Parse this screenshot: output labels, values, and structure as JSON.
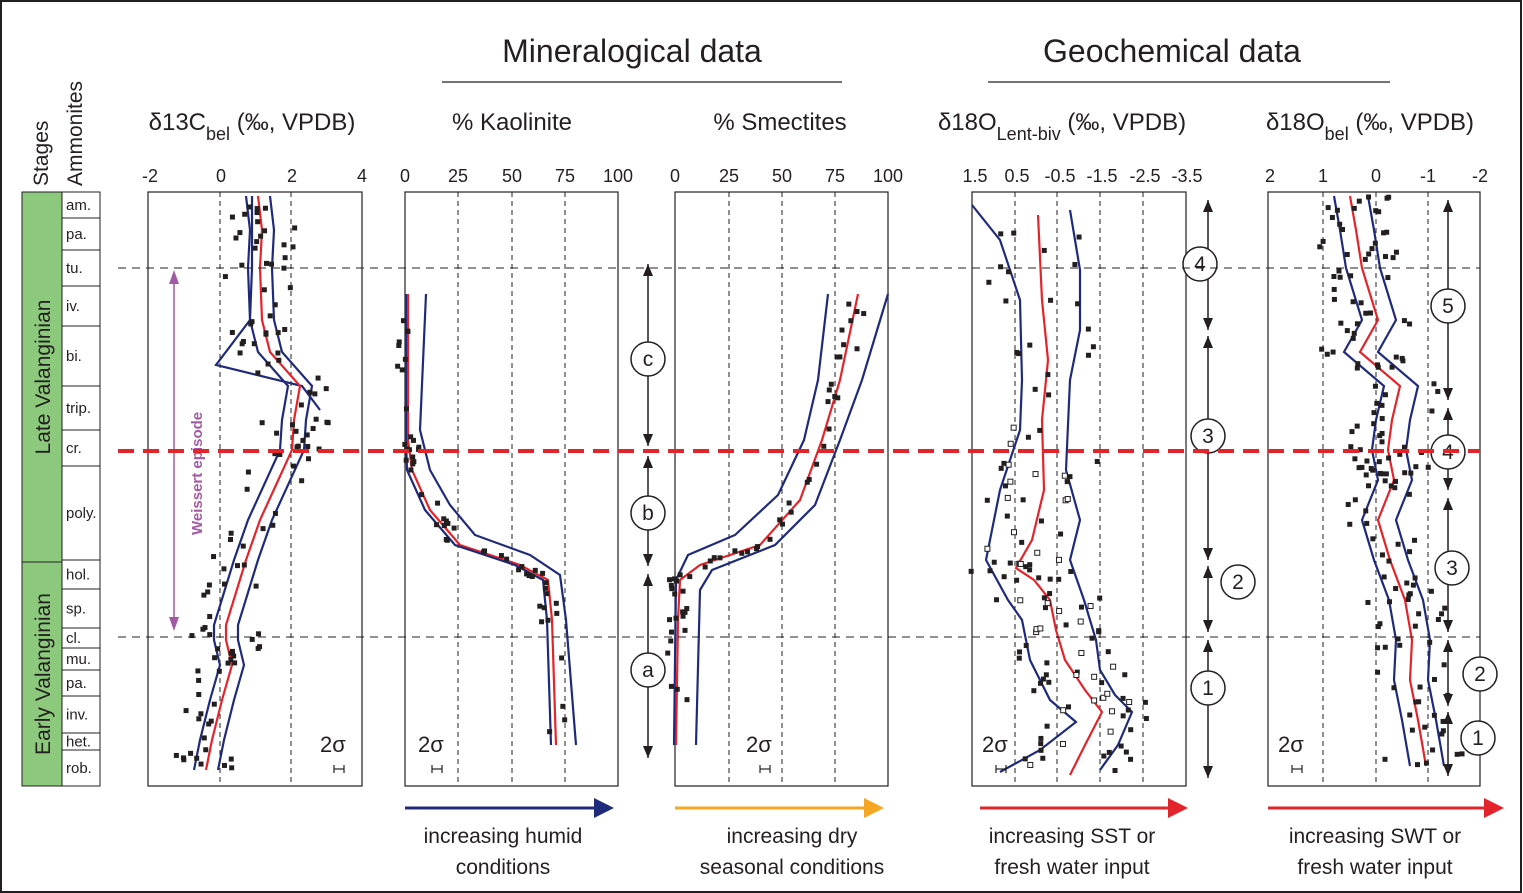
{
  "headers": {
    "mineralogical": "Mineralogical data",
    "geochemical": "Geochemical data",
    "stages": "Stages",
    "ammonites": "Ammonites"
  },
  "stages": {
    "late": "Late Valanginian",
    "early": "Early Valanginian",
    "color": "#8cc97c"
  },
  "ammonite_zones": [
    "am.",
    "pa.",
    "tu.",
    "iv.",
    "bi.",
    "trip.",
    "cr.",
    "poly.",
    "hol.",
    "sp.",
    "cl.",
    "mu.",
    "pa.",
    "inv.",
    "het.",
    "rob."
  ],
  "weissert_label": "Weissert episode",
  "panels": {
    "d13c": {
      "title_main": "δ13C",
      "title_sub": "bel",
      "title_rest": " (‰, VPDB)",
      "ticks": [
        "-2",
        "0",
        "2",
        "4"
      ],
      "sigma": "2σ"
    },
    "kaol": {
      "title": "% Kaolinite",
      "ticks": [
        "0",
        "25",
        "50",
        "75",
        "100"
      ],
      "sigma": "2σ",
      "arrow_text1": "increasing humid",
      "arrow_text2": "conditions",
      "arrow_color": "#1f2b7a"
    },
    "smec": {
      "title": "% Smectites",
      "ticks": [
        "0",
        "25",
        "50",
        "75",
        "100"
      ],
      "sigma": "2σ",
      "arrow_text1": "increasing dry",
      "arrow_text2": "seasonal conditions",
      "arrow_color": "#f5a623"
    },
    "d18olent": {
      "title_main": "δ18O",
      "title_sub": "Lent-biv",
      "title_rest": " (‰, VPDB)",
      "ticks": [
        "1.5",
        "0.5",
        "-0.5",
        "-1.5",
        "-2.5",
        "-3.5"
      ],
      "sigma": "2σ",
      "arrow_text1": "increasing SST or",
      "arrow_text2": "fresh water input",
      "arrow_color": "#e3242b"
    },
    "d18obel": {
      "title_main": "δ18O",
      "title_sub": "bel",
      "title_rest": " (‰, VPDB)",
      "ticks": [
        "2",
        "1",
        "0",
        "-1",
        "-2"
      ],
      "sigma": "2σ",
      "arrow_text1": "increasing SWT or",
      "arrow_text2": "fresh water input",
      "arrow_color": "#e3242b"
    }
  },
  "intervals": {
    "mineral": [
      "c",
      "b",
      "a"
    ],
    "lent": [
      "4",
      "3",
      "2",
      "1"
    ],
    "bel": [
      "5",
      "4",
      "3",
      "2",
      "1"
    ]
  }
}
